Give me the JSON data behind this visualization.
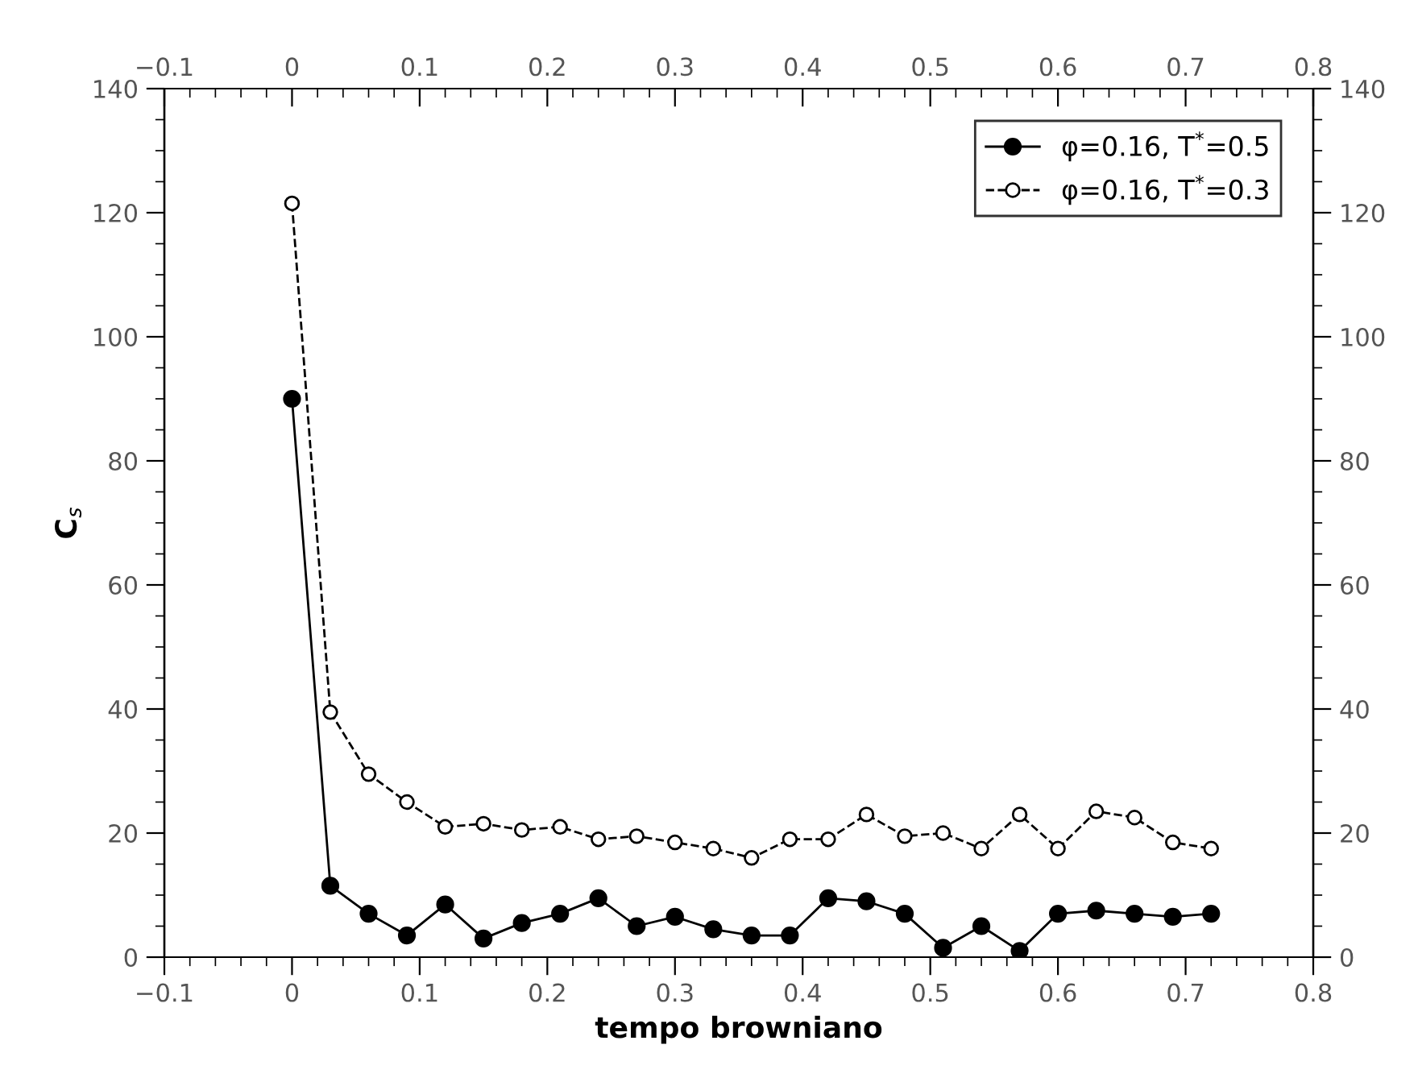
{
  "chart_data": {
    "type": "line",
    "xlabel": "tempo browniano",
    "ylabel": "C$_{s}$",
    "x": [
      0,
      0.03,
      0.06,
      0.09,
      0.12,
      0.15,
      0.18,
      0.21,
      0.24,
      0.27,
      0.3,
      0.33,
      0.36,
      0.39,
      0.42,
      0.45,
      0.48,
      0.51,
      0.54,
      0.57,
      0.6,
      0.63,
      0.66,
      0.69,
      0.72
    ],
    "series": [
      {
        "name": "φ=0.16, T$^{*}$=0.5",
        "color": "#000000",
        "marker": "circle",
        "line_style": "solid",
        "values": [
          90,
          11.5,
          7,
          3.5,
          8.5,
          3,
          5.5,
          7,
          9.5,
          5,
          6.5,
          4.5,
          3.5,
          3.5,
          9.5,
          9,
          7,
          1.5,
          5,
          1,
          7,
          7.5,
          7,
          6.5,
          7
        ]
      },
      {
        "name": "φ=0.16, T$^{*}$=0.3",
        "color": "#000000",
        "marker": "circle",
        "line_style": "dashed",
        "values": [
          121.5,
          39.5,
          29.5,
          25,
          21,
          21.5,
          20.5,
          21,
          19,
          19.5,
          18.5,
          17.5,
          16,
          19,
          19,
          23,
          19.5,
          20,
          17.5,
          23,
          17.5,
          23.5,
          22.5,
          18.5,
          17.5
        ]
      }
    ],
    "xlim": [
      -0.1,
      0.8
    ],
    "xticks": [
      {
        "value": -0.1,
        "label": "−0.1"
      },
      0,
      0.1,
      0.2,
      0.3,
      0.4,
      0.5,
      0.6,
      0.7,
      0.8
    ],
    "x2lim": [
      -0.1,
      0.8
    ],
    "x2ticks": [
      {
        "value": -0.1,
        "label": "−0.1"
      },
      0,
      0.1,
      0.2,
      0.3,
      0.4,
      0.5,
      0.6,
      0.7,
      0.8
    ],
    "ylim": [
      0,
      140
    ],
    "yticks": [
      0,
      20,
      40,
      60,
      80,
      100,
      120,
      140
    ],
    "y2lim": [
      0,
      140
    ],
    "y2ticks": [
      0,
      20,
      40,
      60,
      80,
      100,
      120,
      140
    ],
    "grid": false,
    "legend": "top right"
  }
}
